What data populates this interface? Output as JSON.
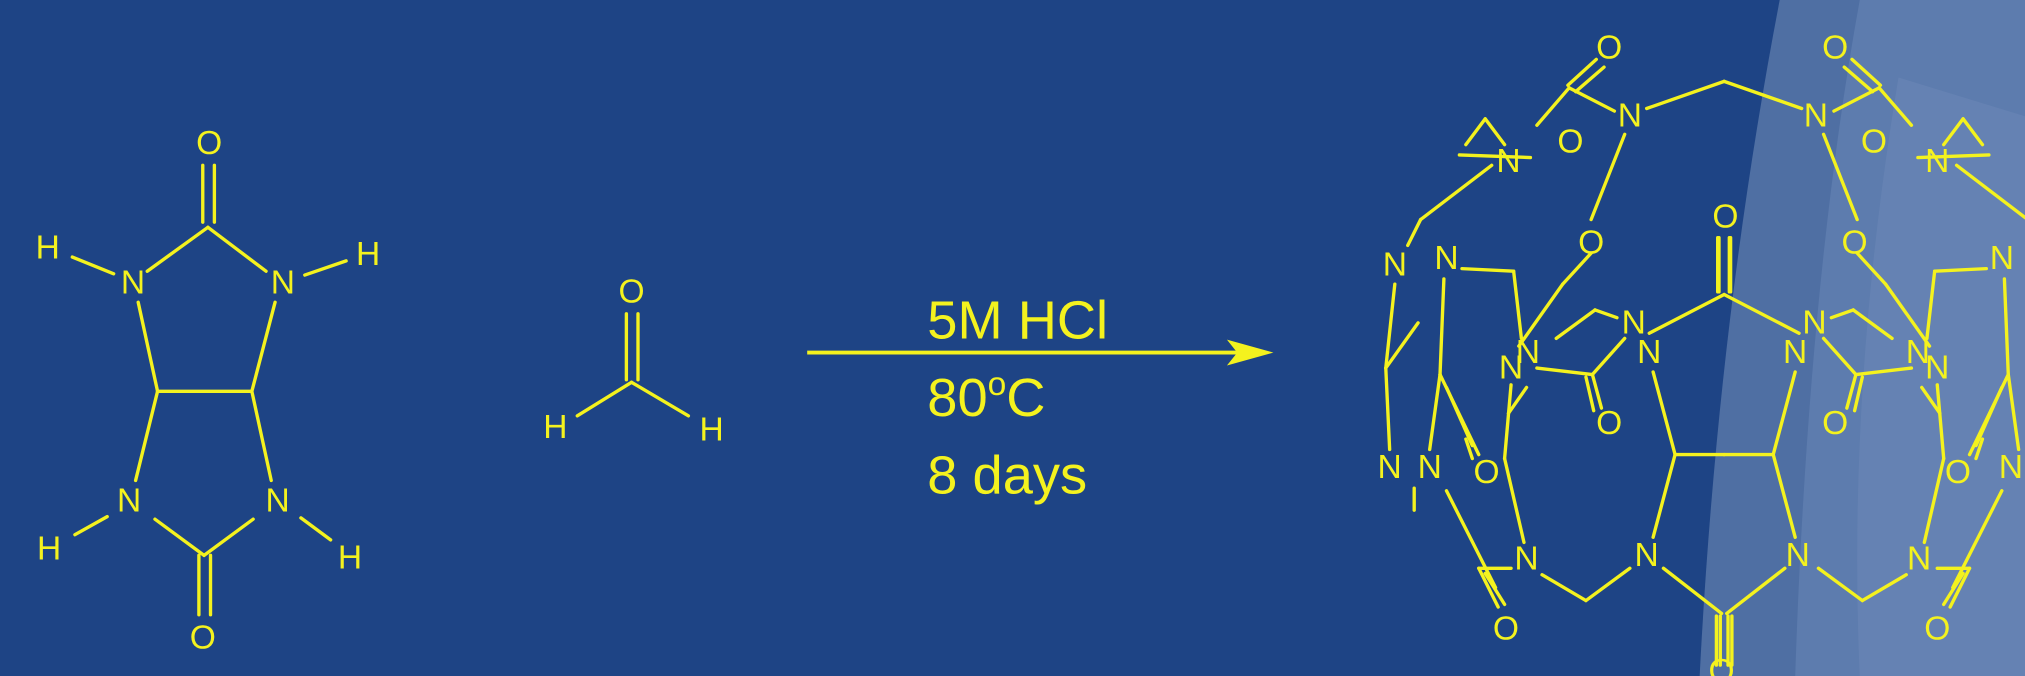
{
  "reactant1": {
    "atoms": [
      "O",
      "H",
      "N",
      "N",
      "H",
      "N",
      "N",
      "H",
      "H",
      "O"
    ]
  },
  "reactant2": {
    "atoms": [
      "O",
      "H",
      "H"
    ]
  },
  "conditions": {
    "reagent": "5M HCl",
    "temperature": "80",
    "degree": "o",
    "unit": "C",
    "time": "8 days"
  },
  "product": {
    "atoms": [
      "O",
      "O",
      "N",
      "N",
      "N",
      "O",
      "O",
      "N",
      "N",
      "N",
      "O",
      "O",
      "O",
      "N",
      "N",
      "N",
      "N",
      "N",
      "N",
      "N",
      "N",
      "N",
      "O",
      "O",
      "N",
      "N",
      "O",
      "O",
      "N",
      "N",
      "N",
      "N",
      "N",
      "O",
      "O",
      "O"
    ]
  }
}
